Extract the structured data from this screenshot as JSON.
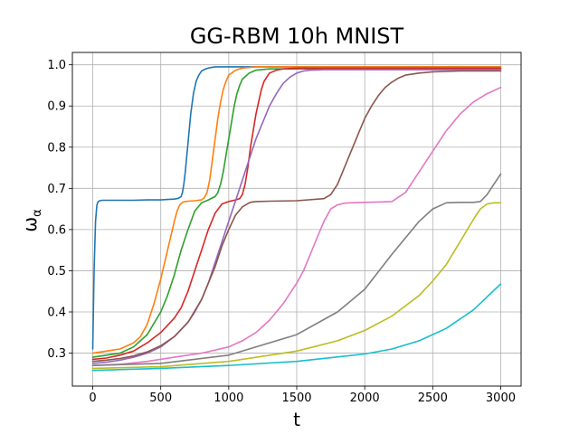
{
  "chart_data": {
    "type": "line",
    "title": "GG-RBM 10h MNIST",
    "xlabel": "t",
    "ylabel_main": "ω",
    "ylabel_sub": "α",
    "xlim": [
      -150,
      3150
    ],
    "ylim": [
      0.22,
      1.03
    ],
    "xticks": [
      0,
      500,
      1000,
      1500,
      2000,
      2500,
      3000
    ],
    "yticks": [
      0.3,
      0.4,
      0.5,
      0.6,
      0.7,
      0.8,
      0.9,
      1.0
    ],
    "xtick_labels": [
      "0",
      "500",
      "1000",
      "1500",
      "2000",
      "2500",
      "3000"
    ],
    "ytick_labels": [
      "0.3",
      "0.4",
      "0.5",
      "0.6",
      "0.7",
      "0.8",
      "0.9",
      "1.0"
    ],
    "grid": true,
    "legend": "none",
    "series_colors": [
      "#1f77b4",
      "#ff7f0e",
      "#2ca02c",
      "#d62728",
      "#9467bd",
      "#8c564b",
      "#e377c2",
      "#7f7f7f",
      "#bcbd22",
      "#17becf"
    ],
    "series": [
      {
        "x": [
          0,
          10,
          20,
          30,
          40,
          50,
          70,
          100,
          200,
          300,
          400,
          500,
          550,
          600,
          630,
          650,
          660,
          670,
          680,
          700,
          720,
          740,
          760,
          780,
          800,
          830,
          860,
          900,
          1000,
          1500,
          2000,
          2500,
          3000
        ],
        "y": [
          0.31,
          0.5,
          0.62,
          0.66,
          0.668,
          0.67,
          0.671,
          0.671,
          0.671,
          0.671,
          0.672,
          0.672,
          0.673,
          0.674,
          0.676,
          0.68,
          0.69,
          0.71,
          0.74,
          0.81,
          0.88,
          0.93,
          0.96,
          0.975,
          0.985,
          0.99,
          0.993,
          0.995,
          0.995,
          0.995,
          0.995,
          0.995,
          0.995
        ]
      },
      {
        "x": [
          0,
          100,
          200,
          300,
          350,
          400,
          450,
          500,
          550,
          600,
          620,
          640,
          660,
          680,
          700,
          750,
          800,
          820,
          840,
          860,
          880,
          900,
          920,
          940,
          960,
          980,
          1000,
          1050,
          1100,
          1200,
          1500,
          2000,
          2500,
          3000
        ],
        "y": [
          0.3,
          0.305,
          0.31,
          0.325,
          0.34,
          0.37,
          0.42,
          0.48,
          0.55,
          0.62,
          0.645,
          0.66,
          0.666,
          0.668,
          0.669,
          0.67,
          0.672,
          0.677,
          0.69,
          0.72,
          0.77,
          0.82,
          0.87,
          0.91,
          0.94,
          0.96,
          0.975,
          0.987,
          0.992,
          0.995,
          0.995,
          0.995,
          0.995,
          0.995
        ]
      },
      {
        "x": [
          0,
          100,
          200,
          300,
          400,
          500,
          550,
          600,
          650,
          700,
          750,
          800,
          850,
          900,
          920,
          940,
          960,
          980,
          1000,
          1020,
          1040,
          1060,
          1080,
          1100,
          1150,
          1200,
          1300,
          1500,
          2000,
          2500,
          3000
        ],
        "y": [
          0.29,
          0.295,
          0.3,
          0.315,
          0.345,
          0.4,
          0.44,
          0.49,
          0.55,
          0.6,
          0.645,
          0.665,
          0.672,
          0.68,
          0.69,
          0.71,
          0.74,
          0.78,
          0.82,
          0.86,
          0.9,
          0.93,
          0.95,
          0.965,
          0.98,
          0.987,
          0.99,
          0.99,
          0.99,
          0.99,
          0.99
        ]
      },
      {
        "x": [
          0,
          100,
          200,
          300,
          400,
          500,
          600,
          650,
          700,
          750,
          800,
          850,
          900,
          950,
          1000,
          1050,
          1080,
          1100,
          1120,
          1140,
          1160,
          1180,
          1200,
          1220,
          1240,
          1260,
          1280,
          1300,
          1350,
          1400,
          1500,
          2000,
          2500,
          3000
        ],
        "y": [
          0.285,
          0.288,
          0.295,
          0.305,
          0.325,
          0.35,
          0.385,
          0.41,
          0.45,
          0.5,
          0.55,
          0.6,
          0.64,
          0.662,
          0.668,
          0.672,
          0.675,
          0.685,
          0.71,
          0.75,
          0.8,
          0.84,
          0.88,
          0.91,
          0.94,
          0.96,
          0.97,
          0.98,
          0.987,
          0.99,
          0.992,
          0.992,
          0.992,
          0.992
        ]
      },
      {
        "x": [
          0,
          100,
          200,
          300,
          400,
          500,
          600,
          700,
          750,
          800,
          850,
          900,
          950,
          1000,
          1050,
          1100,
          1150,
          1200,
          1250,
          1300,
          1350,
          1400,
          1450,
          1500,
          1550,
          1600,
          1700,
          2000,
          2500,
          3000
        ],
        "y": [
          0.275,
          0.278,
          0.283,
          0.29,
          0.3,
          0.315,
          0.34,
          0.375,
          0.4,
          0.43,
          0.47,
          0.52,
          0.57,
          0.62,
          0.67,
          0.72,
          0.77,
          0.82,
          0.86,
          0.9,
          0.93,
          0.955,
          0.97,
          0.98,
          0.985,
          0.987,
          0.988,
          0.988,
          0.988,
          0.988
        ]
      },
      {
        "x": [
          0,
          100,
          200,
          300,
          400,
          500,
          600,
          700,
          800,
          850,
          900,
          950,
          1000,
          1050,
          1100,
          1150,
          1170,
          1200,
          1300,
          1500,
          1700,
          1750,
          1800,
          1850,
          1900,
          1950,
          2000,
          2050,
          2100,
          2150,
          2200,
          2250,
          2300,
          2400,
          2500,
          2700,
          3000
        ],
        "y": [
          0.28,
          0.283,
          0.287,
          0.293,
          0.303,
          0.318,
          0.34,
          0.375,
          0.43,
          0.47,
          0.51,
          0.56,
          0.6,
          0.635,
          0.655,
          0.665,
          0.667,
          0.668,
          0.669,
          0.67,
          0.675,
          0.685,
          0.71,
          0.75,
          0.79,
          0.83,
          0.87,
          0.9,
          0.925,
          0.945,
          0.958,
          0.968,
          0.975,
          0.98,
          0.983,
          0.985,
          0.985
        ]
      },
      {
        "x": [
          0,
          200,
          400,
          600,
          800,
          1000,
          1100,
          1200,
          1300,
          1400,
          1500,
          1550,
          1600,
          1650,
          1700,
          1750,
          1800,
          1850,
          1900,
          2000,
          2100,
          2200,
          2300,
          2400,
          2500,
          2600,
          2700,
          2800,
          2900,
          3000
        ],
        "y": [
          0.27,
          0.273,
          0.28,
          0.29,
          0.3,
          0.315,
          0.33,
          0.35,
          0.38,
          0.42,
          0.47,
          0.5,
          0.54,
          0.58,
          0.62,
          0.65,
          0.66,
          0.664,
          0.665,
          0.666,
          0.667,
          0.668,
          0.69,
          0.74,
          0.79,
          0.84,
          0.88,
          0.91,
          0.93,
          0.945
        ]
      },
      {
        "x": [
          0,
          500,
          1000,
          1500,
          1800,
          2000,
          2200,
          2400,
          2500,
          2600,
          2700,
          2800,
          2850,
          2900,
          2950,
          3000
        ],
        "y": [
          0.27,
          0.275,
          0.295,
          0.345,
          0.4,
          0.455,
          0.54,
          0.62,
          0.65,
          0.665,
          0.666,
          0.666,
          0.668,
          0.685,
          0.71,
          0.735
        ]
      },
      {
        "x": [
          0,
          500,
          1000,
          1500,
          1800,
          2000,
          2200,
          2400,
          2500,
          2600,
          2700,
          2800,
          2850,
          2900,
          2950,
          3000
        ],
        "y": [
          0.263,
          0.267,
          0.28,
          0.305,
          0.33,
          0.355,
          0.39,
          0.44,
          0.475,
          0.515,
          0.57,
          0.625,
          0.65,
          0.662,
          0.665,
          0.665
        ]
      },
      {
        "x": [
          0,
          500,
          1000,
          1500,
          2000,
          2200,
          2400,
          2600,
          2800,
          3000
        ],
        "y": [
          0.258,
          0.263,
          0.27,
          0.28,
          0.298,
          0.31,
          0.33,
          0.36,
          0.405,
          0.468
        ]
      }
    ]
  }
}
